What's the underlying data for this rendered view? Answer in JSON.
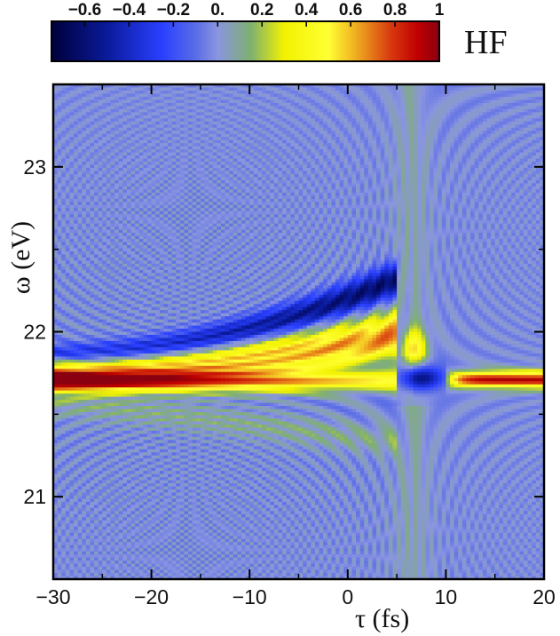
{
  "chart_data": {
    "type": "heatmap",
    "panel_label": "HF",
    "xlabel": "τ (fs)",
    "ylabel": "ω (eV)",
    "xlim": [
      -30,
      20
    ],
    "ylim": [
      20.5,
      23.5
    ],
    "x_ticks": [
      {
        "value": -30,
        "label": "−30"
      },
      {
        "value": -20,
        "label": "−20"
      },
      {
        "value": -10,
        "label": "−10"
      },
      {
        "value": 0,
        "label": "0"
      },
      {
        "value": 10,
        "label": "10"
      },
      {
        "value": 20,
        "label": "20"
      }
    ],
    "y_ticks": [
      {
        "value": 21,
        "label": "21"
      },
      {
        "value": 22,
        "label": "22"
      },
      {
        "value": 23,
        "label": "23"
      }
    ],
    "colorbar": {
      "range": [
        -0.75,
        1.0
      ],
      "ticks": [
        {
          "value": -0.6,
          "label": "−0.6"
        },
        {
          "value": -0.4,
          "label": "−0.4"
        },
        {
          "value": -0.2,
          "label": "−0.2"
        },
        {
          "value": 0,
          "label": "0."
        },
        {
          "value": 0.2,
          "label": "0.2"
        },
        {
          "value": 0.4,
          "label": "0.4"
        },
        {
          "value": 0.6,
          "label": "0.6"
        },
        {
          "value": 0.8,
          "label": "0.8"
        },
        {
          "value": 1,
          "label": "1"
        }
      ],
      "colors": [
        {
          "value": -0.75,
          "color": "#00003a"
        },
        {
          "value": -0.5,
          "color": "#0a1a9a"
        },
        {
          "value": -0.25,
          "color": "#2a40ff"
        },
        {
          "value": -0.1,
          "color": "#5a6ce6"
        },
        {
          "value": 0.0,
          "color": "#8a95e0"
        },
        {
          "value": 0.15,
          "color": "#7fb070"
        },
        {
          "value": 0.3,
          "color": "#f2f200"
        },
        {
          "value": 0.5,
          "color": "#ffff33"
        },
        {
          "value": 0.62,
          "color": "#f0b020"
        },
        {
          "value": 0.78,
          "color": "#d83a10"
        },
        {
          "value": 0.9,
          "color": "#c00000"
        },
        {
          "value": 1.0,
          "color": "#8a0010"
        }
      ]
    },
    "features": [
      {
        "name": "main resonance line",
        "omega": 21.7,
        "tau_range": [
          -30,
          5
        ],
        "amplitude_range": [
          0.9,
          0.4
        ]
      },
      {
        "name": "upper dispersive branch",
        "tau_range": [
          -30,
          5
        ],
        "omega_range": [
          21.85,
          22.15
        ],
        "sign": "negative"
      },
      {
        "name": "late-delay resonance",
        "omega": 21.7,
        "tau_range": [
          11,
          20
        ],
        "amplitude": 0.9
      },
      {
        "name": "overlap region dip",
        "tau_range": [
          3,
          10
        ],
        "omega": 21.72,
        "sign": "negative"
      }
    ]
  }
}
